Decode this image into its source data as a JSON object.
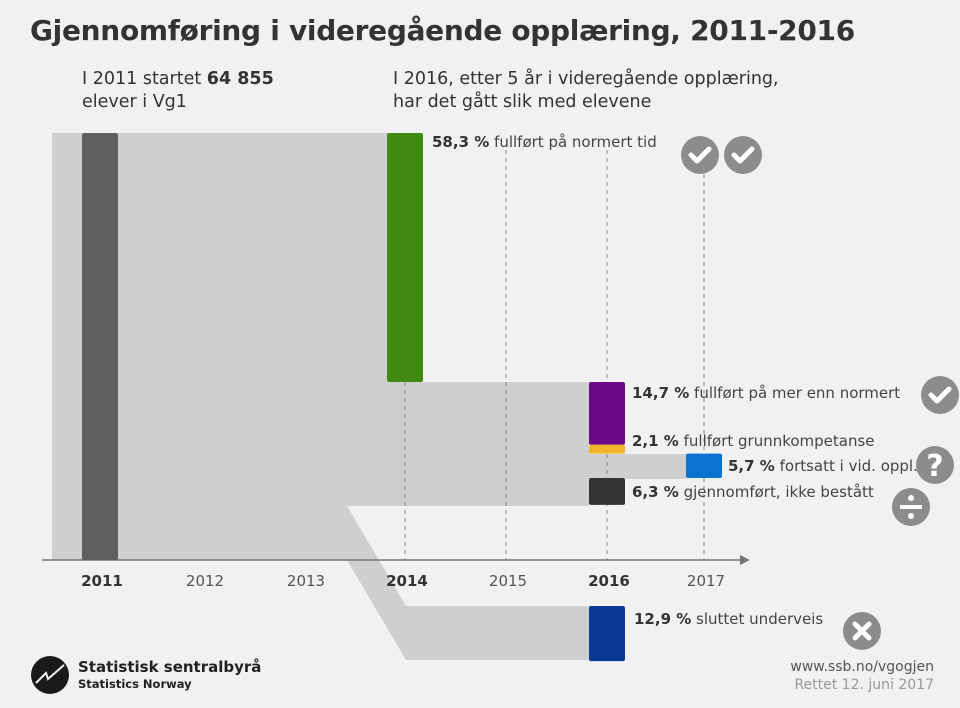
{
  "title": "Gjennomføring i videregående opplæring, 2011-2016",
  "intro_left": {
    "line1_pre": "I 2011 startet ",
    "line1_bold": "64 855",
    "line2": "elever i Vg1"
  },
  "intro_right": {
    "line1": "I 2016, etter 5 år i videregående opplæring,",
    "line2": "har det gått slik med elevene"
  },
  "colors": {
    "flow": "#cfcfcf",
    "start": "#5f5f5f",
    "icon": "#8c8c8c"
  },
  "chart_data": {
    "type": "sankey",
    "title": "Gjennomføring i videregående opplæring, 2011-2016",
    "start": {
      "year": "2011",
      "count": 64855
    },
    "x_ticks": [
      "2011",
      "2012",
      "2013",
      "2014",
      "2015",
      "2016",
      "2017"
    ],
    "bold_ticks": [
      "2011",
      "2014",
      "2016"
    ],
    "outcomes": [
      {
        "pct": 58.3,
        "pct_label": "58,3 %",
        "text": "fullført på normert tid",
        "year": "2014",
        "color": "#3f8a10",
        "icon": "double-check-icon"
      },
      {
        "pct": 14.7,
        "pct_label": "14,7 %",
        "text": "fullført på mer enn normert",
        "year": "2016",
        "color": "#6a0a8a",
        "icon": "check-icon"
      },
      {
        "pct": 2.1,
        "pct_label": "2,1 %",
        "text": "fullført grunnkompetanse",
        "year": "2016",
        "color": "#f0b429",
        "icon": ""
      },
      {
        "pct": 5.7,
        "pct_label": "5,7 %",
        "text": "fortsatt i vid. oppl.",
        "year": "2017",
        "color": "#0b72d0",
        "icon": "question-icon"
      },
      {
        "pct": 6.3,
        "pct_label": "6,3 %",
        "text": "gjennomført, ikke bestått",
        "year": "2016",
        "color": "#333333",
        "icon": "divide-icon"
      },
      {
        "pct": 12.9,
        "pct_label": "12,9 %",
        "text": "sluttet underveis",
        "year": "2016",
        "color": "#0a3a96",
        "icon": "x-icon"
      }
    ]
  },
  "footer": {
    "org": "Statistisk sentralbyrå",
    "org_en": "Statistics Norway",
    "url": "www.ssb.no/vgogjen",
    "date": "Rettet 12. juni 2017"
  }
}
